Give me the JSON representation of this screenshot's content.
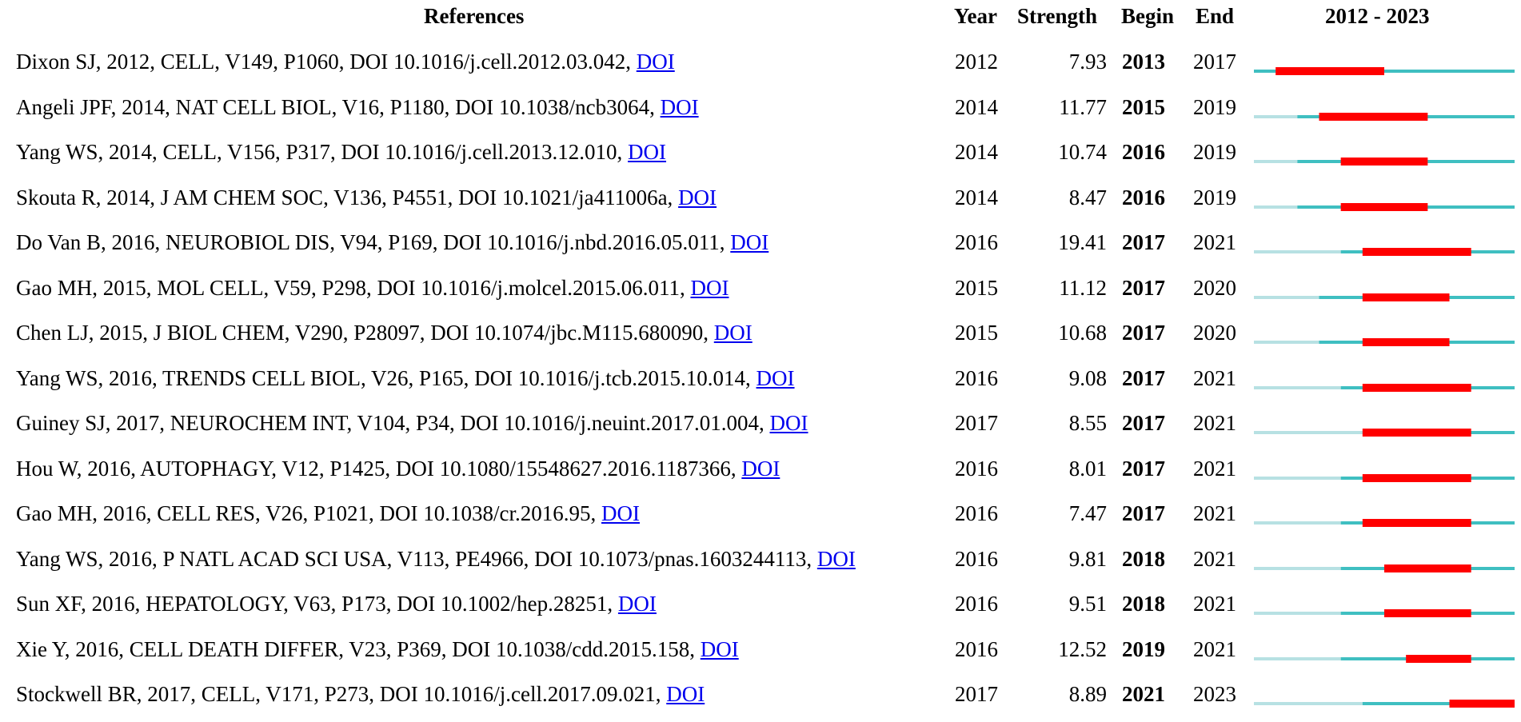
{
  "headers": {
    "references": "References",
    "year": "Year",
    "strength": "Strength",
    "begin": "Begin",
    "end": "End",
    "range": "2012 - 2023"
  },
  "chart_data": {
    "type": "table",
    "title": "",
    "range_start": 2012,
    "range_end": 2023,
    "colors": {
      "before_publication": "#b7e1e3",
      "after_publication": "#3fbfc1",
      "burst": "#ff0000",
      "link": "#0000ee"
    },
    "columns": [
      "References",
      "Year",
      "Strength",
      "Begin",
      "End",
      "2012 - 2023"
    ],
    "rows": [
      {
        "reference": "Dixon SJ, 2012, CELL, V149, P1060, DOI 10.1016/j.cell.2012.03.042,",
        "link": "DOI",
        "year": 2012,
        "strength": "7.93",
        "begin": 2013,
        "end": 2017
      },
      {
        "reference": "Angeli JPF, 2014, NAT CELL BIOL, V16, P1180, DOI 10.1038/ncb3064,",
        "link": "DOI",
        "year": 2014,
        "strength": "11.77",
        "begin": 2015,
        "end": 2019
      },
      {
        "reference": "Yang WS, 2014, CELL, V156, P317, DOI 10.1016/j.cell.2013.12.010,",
        "link": "DOI",
        "year": 2014,
        "strength": "10.74",
        "begin": 2016,
        "end": 2019
      },
      {
        "reference": "Skouta R, 2014, J AM CHEM SOC, V136, P4551, DOI 10.1021/ja411006a,",
        "link": "DOI",
        "year": 2014,
        "strength": "8.47",
        "begin": 2016,
        "end": 2019
      },
      {
        "reference": "Do Van B, 2016, NEUROBIOL DIS, V94, P169, DOI 10.1016/j.nbd.2016.05.011,",
        "link": "DOI",
        "year": 2016,
        "strength": "19.41",
        "begin": 2017,
        "end": 2021
      },
      {
        "reference": "Gao MH, 2015, MOL CELL, V59, P298, DOI 10.1016/j.molcel.2015.06.011,",
        "link": "DOI",
        "year": 2015,
        "strength": "11.12",
        "begin": 2017,
        "end": 2020
      },
      {
        "reference": "Chen LJ, 2015, J BIOL CHEM, V290, P28097, DOI 10.1074/jbc.M115.680090,",
        "link": "DOI",
        "year": 2015,
        "strength": "10.68",
        "begin": 2017,
        "end": 2020
      },
      {
        "reference": "Yang WS, 2016, TRENDS CELL BIOL, V26, P165, DOI 10.1016/j.tcb.2015.10.014,",
        "link": "DOI",
        "year": 2016,
        "strength": "9.08",
        "begin": 2017,
        "end": 2021
      },
      {
        "reference": "Guiney SJ, 2017, NEUROCHEM INT, V104, P34, DOI 10.1016/j.neuint.2017.01.004,",
        "link": "DOI",
        "year": 2017,
        "strength": "8.55",
        "begin": 2017,
        "end": 2021
      },
      {
        "reference": "Hou W, 2016, AUTOPHAGY, V12, P1425, DOI 10.1080/15548627.2016.1187366,",
        "link": "DOI",
        "year": 2016,
        "strength": "8.01",
        "begin": 2017,
        "end": 2021
      },
      {
        "reference": "Gao MH, 2016, CELL RES, V26, P1021, DOI 10.1038/cr.2016.95,",
        "link": "DOI",
        "year": 2016,
        "strength": "7.47",
        "begin": 2017,
        "end": 2021
      },
      {
        "reference": "Yang WS, 2016, P NATL ACAD SCI USA, V113, PE4966, DOI 10.1073/pnas.1603244113,",
        "link": "DOI",
        "year": 2016,
        "strength": "9.81",
        "begin": 2018,
        "end": 2021
      },
      {
        "reference": "Sun XF, 2016, HEPATOLOGY, V63, P173, DOI 10.1002/hep.28251,",
        "link": "DOI",
        "year": 2016,
        "strength": "9.51",
        "begin": 2018,
        "end": 2021
      },
      {
        "reference": "Xie Y, 2016, CELL DEATH DIFFER, V23, P369, DOI 10.1038/cdd.2015.158,",
        "link": "DOI",
        "year": 2016,
        "strength": "12.52",
        "begin": 2019,
        "end": 2021
      },
      {
        "reference": "Stockwell BR, 2017, CELL, V171, P273, DOI 10.1016/j.cell.2017.09.021,",
        "link": "DOI",
        "year": 2017,
        "strength": "8.89",
        "begin": 2021,
        "end": 2023
      }
    ]
  }
}
